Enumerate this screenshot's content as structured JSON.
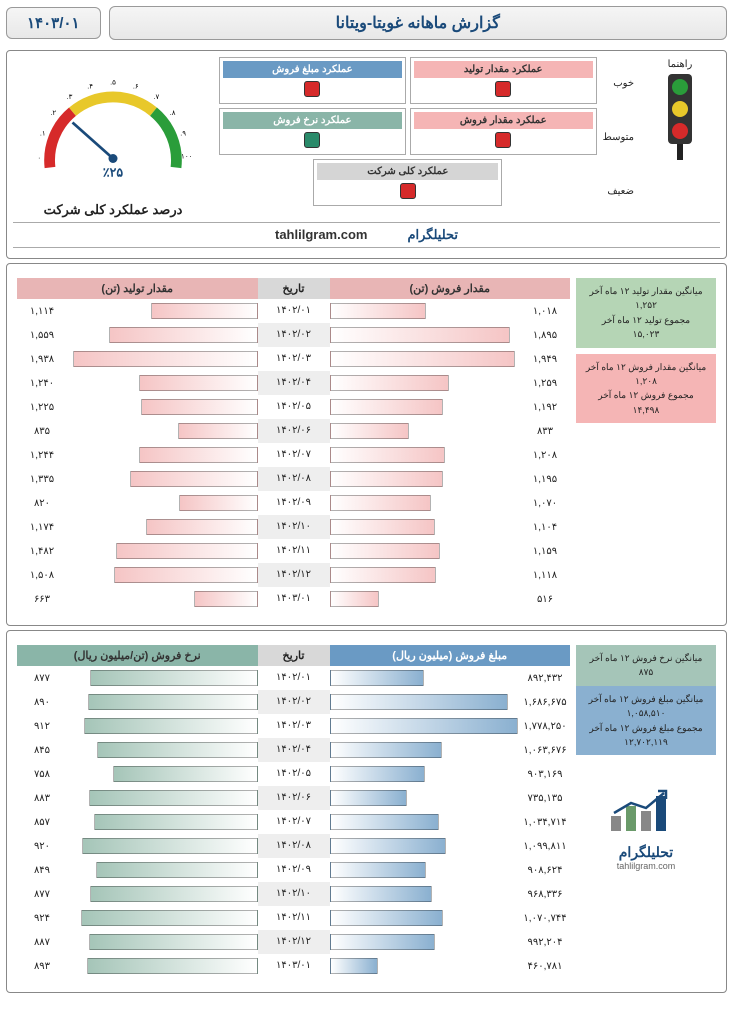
{
  "header": {
    "title": "گزارش ماهانه غویتا-ویتانا",
    "date": "۱۴۰۳/۰۱"
  },
  "legend": {
    "title": "راهنما",
    "good": "خوب",
    "mid": "متوسط",
    "bad": "ضعیف",
    "colors": {
      "good": "#2a9d3a",
      "mid": "#e8c82a",
      "bad": "#d62a2a"
    }
  },
  "indicators": {
    "headers": [
      {
        "label": "عملکرد مقدار تولید",
        "bg": "#f5b5b5",
        "light": "#d62a2a"
      },
      {
        "label": "عملکرد مبلغ فروش",
        "bg": "#6a9ac4",
        "light": "#d62a2a"
      },
      {
        "label": "عملکرد مقدار فروش",
        "bg": "#f5b5b5",
        "light": "#d62a2a"
      },
      {
        "label": "عملکرد نرخ فروش",
        "bg": "#8ab5a8",
        "light": "#2a8a6a"
      }
    ],
    "overall": {
      "label": "عملکرد کلی شرکت",
      "bg": "#d5d5d5",
      "light": "#d62a2a"
    }
  },
  "gauge": {
    "percent": 25,
    "label": "٪۲۵",
    "title": "درصد عملکرد کلی شرکت",
    "ticks": [
      ".",
      "۱.",
      "۲.",
      "۳.",
      "۴.",
      "۵.",
      "۶.",
      "۷.",
      "۸.",
      "۹.",
      "۱۰۰"
    ],
    "colors": {
      "red": "#d62a2a",
      "yellow": "#e8c82a",
      "green": "#2a9d3a",
      "needle": "#1a4a7a"
    }
  },
  "brand": {
    "fa": "تحلیلگرام",
    "en": "tahlilgram.com"
  },
  "section1": {
    "col1": {
      "header": "مقدار فروش (تن)",
      "headerBg": "#e8b5b5",
      "barColor": "#f5c5c5",
      "max": 2000
    },
    "col2": {
      "header": "مقدار تولید (تن)",
      "headerBg": "#e8b5b5",
      "barColor": "#f5c5c5",
      "max": 2000
    },
    "dateHeader": "تاریخ",
    "dateBg": "#d8d8d8",
    "dates": [
      "۱۴۰۲/۰۱",
      "۱۴۰۲/۰۲",
      "۱۴۰۲/۰۳",
      "۱۴۰۲/۰۴",
      "۱۴۰۲/۰۵",
      "۱۴۰۲/۰۶",
      "۱۴۰۲/۰۷",
      "۱۴۰۲/۰۸",
      "۱۴۰۲/۰۹",
      "۱۴۰۲/۱۰",
      "۱۴۰۲/۱۱",
      "۱۴۰۲/۱۲",
      "۱۴۰۳/۰۱"
    ],
    "sales_qty": [
      1018,
      1895,
      1949,
      1259,
      1192,
      833,
      1208,
      1195,
      1070,
      1104,
      1159,
      1118,
      516
    ],
    "sales_qty_labels": [
      "۱,۰۱۸",
      "۱,۸۹۵",
      "۱,۹۴۹",
      "۱,۲۵۹",
      "۱,۱۹۲",
      "۸۳۳",
      "۱,۲۰۸",
      "۱,۱۹۵",
      "۱,۰۷۰",
      "۱,۱۰۴",
      "۱,۱۵۹",
      "۱,۱۱۸",
      "۵۱۶"
    ],
    "prod_qty": [
      1114,
      1559,
      1938,
      1240,
      1225,
      835,
      1244,
      1335,
      820,
      1174,
      1482,
      1508,
      663
    ],
    "prod_qty_labels": [
      "۱,۱۱۴",
      "۱,۵۵۹",
      "۱,۹۳۸",
      "۱,۲۴۰",
      "۱,۲۲۵",
      "۸۳۵",
      "۱,۲۴۴",
      "۱,۳۳۵",
      "۸۲۰",
      "۱,۱۷۴",
      "۱,۴۸۲",
      "۱,۵۰۸",
      "۶۶۳"
    ],
    "stats": [
      {
        "bg": "#b5d5b5",
        "lines": [
          "میانگین مقدار تولید ۱۲ ماه آخر",
          "۱,۲۵۲",
          "مجموع تولید ۱۲ ماه آخر",
          "۱۵,۰۲۳"
        ]
      },
      {
        "bg": "#f5b5b5",
        "lines": [
          "میانگین مقدار فروش ۱۲ ماه آخر",
          "۱,۲۰۸",
          "مجموع فروش ۱۲ ماه آخر",
          "۱۴,۴۹۸"
        ]
      }
    ]
  },
  "section2": {
    "col1": {
      "header": "مبلغ فروش (میلیون ریال)",
      "headerBg": "#6a9ac4",
      "barColor": "#8ab0d0",
      "max": 1800000
    },
    "col2": {
      "header": "نرخ فروش (تن/میلیون ریال)",
      "headerBg": "#8ab5a8",
      "barColor": "#a5c5b8",
      "max": 1000
    },
    "dateHeader": "تاریخ",
    "dateBg": "#d8d8d8",
    "dates": [
      "۱۴۰۲/۰۱",
      "۱۴۰۲/۰۲",
      "۱۴۰۲/۰۳",
      "۱۴۰۲/۰۴",
      "۱۴۰۲/۰۵",
      "۱۴۰۲/۰۶",
      "۱۴۰۲/۰۷",
      "۱۴۰۲/۰۸",
      "۱۴۰۲/۰۹",
      "۱۴۰۲/۱۰",
      "۱۴۰۲/۱۱",
      "۱۴۰۲/۱۲",
      "۱۴۰۳/۰۱"
    ],
    "amount": [
      892432,
      1686675,
      1778250,
      1063676,
      903169,
      735135,
      1034714,
      1099811,
      908624,
      968336,
      1070744,
      992204,
      460781
    ],
    "amount_labels": [
      "۸۹۲,۴۳۲",
      "۱,۶۸۶,۶۷۵",
      "۱,۷۷۸,۲۵۰",
      "۱,۰۶۳,۶۷۶",
      "۹۰۳,۱۶۹",
      "۷۳۵,۱۳۵",
      "۱,۰۳۴,۷۱۴",
      "۱,۰۹۹,۸۱۱",
      "۹۰۸,۶۲۴",
      "۹۶۸,۳۳۶",
      "۱,۰۷۰,۷۴۴",
      "۹۹۲,۲۰۴",
      "۴۶۰,۷۸۱"
    ],
    "rate": [
      877,
      890,
      912,
      845,
      758,
      883,
      857,
      920,
      849,
      877,
      924,
      887,
      893
    ],
    "rate_labels": [
      "۸۷۷",
      "۸۹۰",
      "۹۱۲",
      "۸۴۵",
      "۷۵۸",
      "۸۸۳",
      "۸۵۷",
      "۹۲۰",
      "۸۴۹",
      "۸۷۷",
      "۹۲۴",
      "۸۸۷",
      "۸۹۳"
    ],
    "stats": [
      {
        "bg": "#a5c5b8",
        "lines": [
          "میانگین نرخ فروش ۱۲ ماه آخر",
          "۸۷۵"
        ]
      },
      {
        "bg": "#8ab0d0",
        "lines": [
          "میانگین مبلغ فروش ۱۲ ماه آخر",
          "۱,۰۵۸,۵۱۰",
          "مجموع مبلغ فروش ۱۲ ماه آخر",
          "۱۲,۷۰۲,۱۱۹"
        ]
      }
    ]
  },
  "logo": {
    "text": "تحلیلگرام",
    "sub": "tahlilgram.com"
  }
}
